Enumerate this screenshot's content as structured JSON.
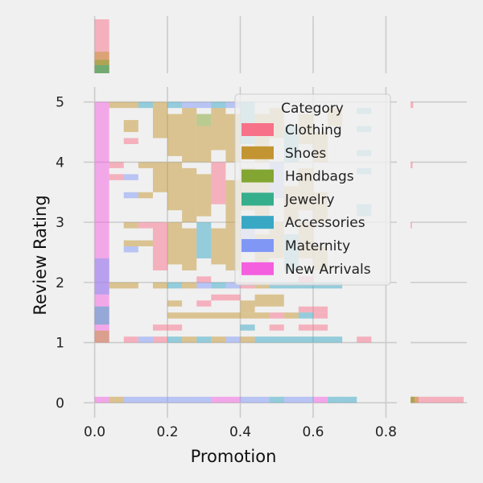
{
  "chart_data": {
    "type": "heatmap",
    "subtype": "joint histogram with marginal histograms",
    "title": "",
    "xlabel": "Promotion",
    "ylabel": "Review Rating",
    "xlim": [
      -0.03,
      0.83
    ],
    "ylim": [
      -0.25,
      5.25
    ],
    "xticks": [
      0.0,
      0.2,
      0.4,
      0.6,
      0.8
    ],
    "xtick_labels": [
      "0.0",
      "0.2",
      "0.4",
      "0.6",
      "0.8"
    ],
    "yticks": [
      0,
      1,
      2,
      3,
      4,
      5
    ],
    "ytick_labels": [
      "0",
      "1",
      "2",
      "3",
      "4",
      "5"
    ],
    "grid": true,
    "legend": {
      "title": "Category",
      "placement": "upper-right",
      "entries": [
        {
          "name": "Clothing",
          "color": "#f77189"
        },
        {
          "name": "Shoes",
          "color": "#c39532"
        },
        {
          "name": "Handbags",
          "color": "#82a631"
        },
        {
          "name": "Jewelry",
          "color": "#35ae8c"
        },
        {
          "name": "Accessories",
          "color": "#38a8c5"
        },
        {
          "name": "Maternity",
          "color": "#8097f5"
        },
        {
          "name": "New Arrivals",
          "color": "#f45fe0"
        }
      ]
    },
    "bin_width_x": 0.04,
    "bin_height_y": 0.1,
    "cells": [
      {
        "x": 0.0,
        "y0": 1.0,
        "y1": 5.0,
        "cat": "New Arrivals"
      },
      {
        "x": 0.0,
        "y0": 1.8,
        "y1": 2.4,
        "cat": "Maternity"
      },
      {
        "x": 0.0,
        "y0": 1.3,
        "y1": 1.6,
        "cat": "Accessories"
      },
      {
        "x": 0.0,
        "y0": 1.0,
        "y1": 1.2,
        "cat": "Shoes"
      },
      {
        "x": 0.0,
        "y0": 0.0,
        "y1": 0.1,
        "cat": "New Arrivals"
      },
      {
        "x": 0.04,
        "y0": 0.0,
        "y1": 0.1,
        "cat": "Shoes"
      },
      {
        "x": 0.08,
        "y0": 0.0,
        "y1": 0.1,
        "cat": "Maternity"
      },
      {
        "x": 0.12,
        "y0": 0.0,
        "y1": 0.1,
        "cat": "Maternity"
      },
      {
        "x": 0.16,
        "y0": 0.0,
        "y1": 0.1,
        "cat": "Maternity"
      },
      {
        "x": 0.2,
        "y0": 0.0,
        "y1": 0.1,
        "cat": "Maternity"
      },
      {
        "x": 0.24,
        "y0": 0.0,
        "y1": 0.1,
        "cat": "Maternity"
      },
      {
        "x": 0.28,
        "y0": 0.0,
        "y1": 0.1,
        "cat": "Maternity"
      },
      {
        "x": 0.32,
        "y0": 0.0,
        "y1": 0.1,
        "cat": "New Arrivals"
      },
      {
        "x": 0.36,
        "y0": 0.0,
        "y1": 0.1,
        "cat": "New Arrivals"
      },
      {
        "x": 0.4,
        "y0": 0.0,
        "y1": 0.1,
        "cat": "Maternity"
      },
      {
        "x": 0.44,
        "y0": 0.0,
        "y1": 0.1,
        "cat": "Maternity"
      },
      {
        "x": 0.48,
        "y0": 0.0,
        "y1": 0.1,
        "cat": "Accessories"
      },
      {
        "x": 0.52,
        "y0": 0.0,
        "y1": 0.1,
        "cat": "Maternity"
      },
      {
        "x": 0.56,
        "y0": 0.0,
        "y1": 0.1,
        "cat": "Maternity"
      },
      {
        "x": 0.6,
        "y0": 0.0,
        "y1": 0.1,
        "cat": "New Arrivals"
      },
      {
        "x": 0.64,
        "y0": 0.0,
        "y1": 0.1,
        "cat": "Accessories"
      },
      {
        "x": 0.68,
        "y0": 0.0,
        "y1": 0.1,
        "cat": "Accessories"
      },
      {
        "x": 0.04,
        "y0": 4.9,
        "y1": 5.0,
        "cat": "Shoes"
      },
      {
        "x": 0.08,
        "y0": 4.9,
        "y1": 5.0,
        "cat": "Shoes"
      },
      {
        "x": 0.12,
        "y0": 4.9,
        "y1": 5.0,
        "cat": "Accessories"
      },
      {
        "x": 0.16,
        "y0": 4.9,
        "y1": 5.0,
        "cat": "Shoes"
      },
      {
        "x": 0.2,
        "y0": 4.9,
        "y1": 5.0,
        "cat": "Accessories"
      },
      {
        "x": 0.24,
        "y0": 4.9,
        "y1": 5.0,
        "cat": "Maternity"
      },
      {
        "x": 0.28,
        "y0": 4.9,
        "y1": 5.0,
        "cat": "Maternity"
      },
      {
        "x": 0.32,
        "y0": 4.9,
        "y1": 5.0,
        "cat": "Accessories"
      },
      {
        "x": 0.36,
        "y0": 4.9,
        "y1": 5.0,
        "cat": "Maternity"
      },
      {
        "x": 0.4,
        "y0": 4.9,
        "y1": 5.0,
        "cat": "Accessories"
      },
      {
        "x": 0.16,
        "y0": 4.4,
        "y1": 4.9,
        "cat": "Shoes"
      },
      {
        "x": 0.2,
        "y0": 4.1,
        "y1": 4.8,
        "cat": "Shoes"
      },
      {
        "x": 0.24,
        "y0": 4.0,
        "y1": 4.9,
        "cat": "Shoes"
      },
      {
        "x": 0.28,
        "y0": 4.6,
        "y1": 4.8,
        "cat": "Handbags"
      },
      {
        "x": 0.28,
        "y0": 4.0,
        "y1": 4.6,
        "cat": "Shoes"
      },
      {
        "x": 0.32,
        "y0": 4.2,
        "y1": 4.9,
        "cat": "Shoes"
      },
      {
        "x": 0.36,
        "y0": 4.0,
        "y1": 4.8,
        "cat": "Shoes"
      },
      {
        "x": 0.4,
        "y0": 4.3,
        "y1": 4.9,
        "cat": "Accessories"
      },
      {
        "x": 0.44,
        "y0": 4.0,
        "y1": 4.8,
        "cat": "Shoes"
      },
      {
        "x": 0.48,
        "y0": 4.4,
        "y1": 4.9,
        "cat": "Shoes"
      },
      {
        "x": 0.52,
        "y0": 4.0,
        "y1": 4.6,
        "cat": "Accessories"
      },
      {
        "x": 0.56,
        "y0": 4.3,
        "y1": 4.8,
        "cat": "Shoes"
      },
      {
        "x": 0.6,
        "y0": 4.0,
        "y1": 4.5,
        "cat": "Shoes"
      },
      {
        "x": 0.64,
        "y0": 4.6,
        "y1": 4.9,
        "cat": "Shoes"
      },
      {
        "x": 0.72,
        "y0": 4.8,
        "y1": 4.9,
        "cat": "Accessories"
      },
      {
        "x": 0.72,
        "y0": 4.5,
        "y1": 4.6,
        "cat": "Accessories"
      },
      {
        "x": 0.72,
        "y0": 4.1,
        "y1": 4.2,
        "cat": "Accessories"
      },
      {
        "x": 0.72,
        "y0": 3.8,
        "y1": 3.9,
        "cat": "Accessories"
      },
      {
        "x": 0.08,
        "y0": 4.5,
        "y1": 4.7,
        "cat": "Shoes"
      },
      {
        "x": 0.08,
        "y0": 4.3,
        "y1": 4.4,
        "cat": "Clothing"
      },
      {
        "x": 0.04,
        "y0": 3.9,
        "y1": 4.0,
        "cat": "Clothing"
      },
      {
        "x": 0.12,
        "y0": 3.9,
        "y1": 4.0,
        "cat": "Shoes"
      },
      {
        "x": 0.04,
        "y0": 3.7,
        "y1": 3.8,
        "cat": "Clothing"
      },
      {
        "x": 0.08,
        "y0": 3.7,
        "y1": 3.8,
        "cat": "Maternity"
      },
      {
        "x": 0.16,
        "y0": 3.5,
        "y1": 4.0,
        "cat": "Shoes"
      },
      {
        "x": 0.2,
        "y0": 3.2,
        "y1": 4.0,
        "cat": "Shoes"
      },
      {
        "x": 0.24,
        "y0": 3.0,
        "y1": 3.9,
        "cat": "Shoes"
      },
      {
        "x": 0.28,
        "y0": 3.1,
        "y1": 3.8,
        "cat": "Shoes"
      },
      {
        "x": 0.32,
        "y0": 3.3,
        "y1": 4.0,
        "cat": "Clothing"
      },
      {
        "x": 0.36,
        "y0": 3.0,
        "y1": 3.7,
        "cat": "Shoes"
      },
      {
        "x": 0.4,
        "y0": 3.2,
        "y1": 3.9,
        "cat": "Shoes"
      },
      {
        "x": 0.44,
        "y0": 3.0,
        "y1": 3.8,
        "cat": "Shoes"
      },
      {
        "x": 0.48,
        "y0": 3.4,
        "y1": 4.0,
        "cat": "Maternity"
      },
      {
        "x": 0.52,
        "y0": 3.0,
        "y1": 3.6,
        "cat": "Shoes"
      },
      {
        "x": 0.56,
        "y0": 3.2,
        "y1": 3.9,
        "cat": "Shoes"
      },
      {
        "x": 0.6,
        "y0": 3.0,
        "y1": 3.5,
        "cat": "Shoes"
      },
      {
        "x": 0.08,
        "y0": 3.4,
        "y1": 3.5,
        "cat": "Maternity"
      },
      {
        "x": 0.12,
        "y0": 3.4,
        "y1": 3.5,
        "cat": "Shoes"
      },
      {
        "x": 0.72,
        "y0": 3.1,
        "y1": 3.3,
        "cat": "Accessories"
      },
      {
        "x": 0.08,
        "y0": 2.9,
        "y1": 3.0,
        "cat": "Shoes"
      },
      {
        "x": 0.12,
        "y0": 2.9,
        "y1": 3.0,
        "cat": "Clothing"
      },
      {
        "x": 0.16,
        "y0": 2.2,
        "y1": 3.0,
        "cat": "Clothing"
      },
      {
        "x": 0.2,
        "y0": 2.3,
        "y1": 3.0,
        "cat": "Shoes"
      },
      {
        "x": 0.24,
        "y0": 2.2,
        "y1": 2.9,
        "cat": "Shoes"
      },
      {
        "x": 0.28,
        "y0": 2.4,
        "y1": 3.0,
        "cat": "Accessories"
      },
      {
        "x": 0.32,
        "y0": 2.3,
        "y1": 2.9,
        "cat": "Shoes"
      },
      {
        "x": 0.36,
        "y0": 2.2,
        "y1": 3.0,
        "cat": "Shoes"
      },
      {
        "x": 0.4,
        "y0": 2.5,
        "y1": 3.0,
        "cat": "Maternity"
      },
      {
        "x": 0.44,
        "y0": 2.2,
        "y1": 2.8,
        "cat": "Shoes"
      },
      {
        "x": 0.48,
        "y0": 2.4,
        "y1": 3.0,
        "cat": "Shoes"
      },
      {
        "x": 0.52,
        "y0": 2.2,
        "y1": 2.8,
        "cat": "Accessories"
      },
      {
        "x": 0.56,
        "y0": 2.4,
        "y1": 3.0,
        "cat": "Shoes"
      },
      {
        "x": 0.6,
        "y0": 2.2,
        "y1": 2.6,
        "cat": "Shoes"
      },
      {
        "x": 0.08,
        "y0": 2.6,
        "y1": 2.7,
        "cat": "Shoes"
      },
      {
        "x": 0.08,
        "y0": 2.5,
        "y1": 2.6,
        "cat": "Maternity"
      },
      {
        "x": 0.12,
        "y0": 2.6,
        "y1": 2.7,
        "cat": "Shoes"
      },
      {
        "x": 0.04,
        "y0": 1.9,
        "y1": 2.0,
        "cat": "Shoes"
      },
      {
        "x": 0.08,
        "y0": 1.9,
        "y1": 2.0,
        "cat": "Shoes"
      },
      {
        "x": 0.16,
        "y0": 1.9,
        "y1": 2.0,
        "cat": "Shoes"
      },
      {
        "x": 0.2,
        "y0": 1.9,
        "y1": 2.0,
        "cat": "Accessories"
      },
      {
        "x": 0.24,
        "y0": 1.9,
        "y1": 2.0,
        "cat": "Shoes"
      },
      {
        "x": 0.28,
        "y0": 1.9,
        "y1": 2.0,
        "cat": "Maternity"
      },
      {
        "x": 0.32,
        "y0": 1.9,
        "y1": 2.0,
        "cat": "Accessories"
      },
      {
        "x": 0.36,
        "y0": 1.9,
        "y1": 2.0,
        "cat": "Maternity"
      },
      {
        "x": 0.4,
        "y0": 1.9,
        "y1": 2.0,
        "cat": "Clothing"
      },
      {
        "x": 0.44,
        "y0": 1.9,
        "y1": 2.0,
        "cat": "Shoes"
      },
      {
        "x": 0.48,
        "y0": 1.9,
        "y1": 2.0,
        "cat": "Accessories"
      },
      {
        "x": 0.52,
        "y0": 1.9,
        "y1": 2.0,
        "cat": "Accessories"
      },
      {
        "x": 0.56,
        "y0": 1.9,
        "y1": 2.0,
        "cat": "Accessories"
      },
      {
        "x": 0.6,
        "y0": 1.9,
        "y1": 2.0,
        "cat": "Accessories"
      },
      {
        "x": 0.64,
        "y0": 1.9,
        "y1": 2.0,
        "cat": "Accessories"
      },
      {
        "x": 0.28,
        "y0": 2.0,
        "y1": 2.1,
        "cat": "Clothing"
      },
      {
        "x": 0.56,
        "y0": 2.0,
        "y1": 2.1,
        "cat": "Clothing"
      },
      {
        "x": 0.2,
        "y0": 1.6,
        "y1": 1.7,
        "cat": "Shoes"
      },
      {
        "x": 0.28,
        "y0": 1.6,
        "y1": 1.7,
        "cat": "Clothing"
      },
      {
        "x": 0.32,
        "y0": 1.7,
        "y1": 1.8,
        "cat": "Clothing"
      },
      {
        "x": 0.36,
        "y0": 1.7,
        "y1": 1.8,
        "cat": "Clothing"
      },
      {
        "x": 0.4,
        "y0": 1.5,
        "y1": 1.7,
        "cat": "Shoes"
      },
      {
        "x": 0.44,
        "y0": 1.6,
        "y1": 1.8,
        "cat": "Shoes"
      },
      {
        "x": 0.48,
        "y0": 1.6,
        "y1": 1.8,
        "cat": "Shoes"
      },
      {
        "x": 0.56,
        "y0": 1.5,
        "y1": 1.6,
        "cat": "Clothing"
      },
      {
        "x": 0.6,
        "y0": 1.5,
        "y1": 1.6,
        "cat": "Clothing"
      },
      {
        "x": 0.2,
        "y0": 1.4,
        "y1": 1.5,
        "cat": "Shoes"
      },
      {
        "x": 0.24,
        "y0": 1.4,
        "y1": 1.5,
        "cat": "Shoes"
      },
      {
        "x": 0.28,
        "y0": 1.4,
        "y1": 1.5,
        "cat": "Shoes"
      },
      {
        "x": 0.32,
        "y0": 1.4,
        "y1": 1.5,
        "cat": "Shoes"
      },
      {
        "x": 0.36,
        "y0": 1.4,
        "y1": 1.5,
        "cat": "Shoes"
      },
      {
        "x": 0.4,
        "y0": 1.4,
        "y1": 1.5,
        "cat": "Shoes"
      },
      {
        "x": 0.44,
        "y0": 1.4,
        "y1": 1.5,
        "cat": "Shoes"
      },
      {
        "x": 0.48,
        "y0": 1.4,
        "y1": 1.5,
        "cat": "Clothing"
      },
      {
        "x": 0.52,
        "y0": 1.4,
        "y1": 1.5,
        "cat": "Shoes"
      },
      {
        "x": 0.56,
        "y0": 1.4,
        "y1": 1.5,
        "cat": "Accessories"
      },
      {
        "x": 0.6,
        "y0": 1.4,
        "y1": 1.5,
        "cat": "Clothing"
      },
      {
        "x": 0.16,
        "y0": 1.2,
        "y1": 1.3,
        "cat": "Clothing"
      },
      {
        "x": 0.2,
        "y0": 1.2,
        "y1": 1.3,
        "cat": "Clothing"
      },
      {
        "x": 0.4,
        "y0": 1.2,
        "y1": 1.3,
        "cat": "Accessories"
      },
      {
        "x": 0.48,
        "y0": 1.2,
        "y1": 1.3,
        "cat": "Clothing"
      },
      {
        "x": 0.56,
        "y0": 1.2,
        "y1": 1.3,
        "cat": "Clothing"
      },
      {
        "x": 0.6,
        "y0": 1.2,
        "y1": 1.3,
        "cat": "Clothing"
      },
      {
        "x": 0.08,
        "y0": 1.0,
        "y1": 1.1,
        "cat": "Clothing"
      },
      {
        "x": 0.12,
        "y0": 1.0,
        "y1": 1.1,
        "cat": "Maternity"
      },
      {
        "x": 0.16,
        "y0": 1.0,
        "y1": 1.1,
        "cat": "Clothing"
      },
      {
        "x": 0.2,
        "y0": 1.0,
        "y1": 1.1,
        "cat": "Accessories"
      },
      {
        "x": 0.24,
        "y0": 1.0,
        "y1": 1.1,
        "cat": "Shoes"
      },
      {
        "x": 0.28,
        "y0": 1.0,
        "y1": 1.1,
        "cat": "Accessories"
      },
      {
        "x": 0.32,
        "y0": 1.0,
        "y1": 1.1,
        "cat": "Shoes"
      },
      {
        "x": 0.36,
        "y0": 1.0,
        "y1": 1.1,
        "cat": "Maternity"
      },
      {
        "x": 0.4,
        "y0": 1.0,
        "y1": 1.1,
        "cat": "Shoes"
      },
      {
        "x": 0.44,
        "y0": 1.0,
        "y1": 1.1,
        "cat": "Accessories"
      },
      {
        "x": 0.48,
        "y0": 1.0,
        "y1": 1.1,
        "cat": "Accessories"
      },
      {
        "x": 0.52,
        "y0": 1.0,
        "y1": 1.1,
        "cat": "Accessories"
      },
      {
        "x": 0.56,
        "y0": 1.0,
        "y1": 1.1,
        "cat": "Accessories"
      },
      {
        "x": 0.6,
        "y0": 1.0,
        "y1": 1.1,
        "cat": "Accessories"
      },
      {
        "x": 0.64,
        "y0": 1.0,
        "y1": 1.1,
        "cat": "Accessories"
      },
      {
        "x": 0.72,
        "y0": 1.0,
        "y1": 1.1,
        "cat": "Clothing"
      }
    ],
    "marginal_x": [
      {
        "x": 0.0,
        "count": 4.0,
        "cat": "Clothing"
      },
      {
        "x": 0.0,
        "count": 1.6,
        "cat": "Shoes"
      },
      {
        "x": 0.0,
        "count": 1.0,
        "cat": "Handbags"
      },
      {
        "x": 0.0,
        "count": 0.6,
        "cat": "Jewelry"
      }
    ],
    "marginal_y": [
      {
        "y": 0.0,
        "count": 4.0,
        "cat": "Clothing"
      },
      {
        "y": 0.0,
        "count": 0.6,
        "cat": "Shoes"
      },
      {
        "y": 0.0,
        "count": 0.3,
        "cat": "Handbags"
      },
      {
        "y": 4.9,
        "count": 0.2,
        "cat": "Clothing"
      },
      {
        "y": 3.9,
        "count": 0.15,
        "cat": "Clothing"
      },
      {
        "y": 2.9,
        "count": 0.1,
        "cat": "Clothing"
      }
    ],
    "marginal_x_max": 4.0,
    "marginal_y_max": 4.0
  }
}
